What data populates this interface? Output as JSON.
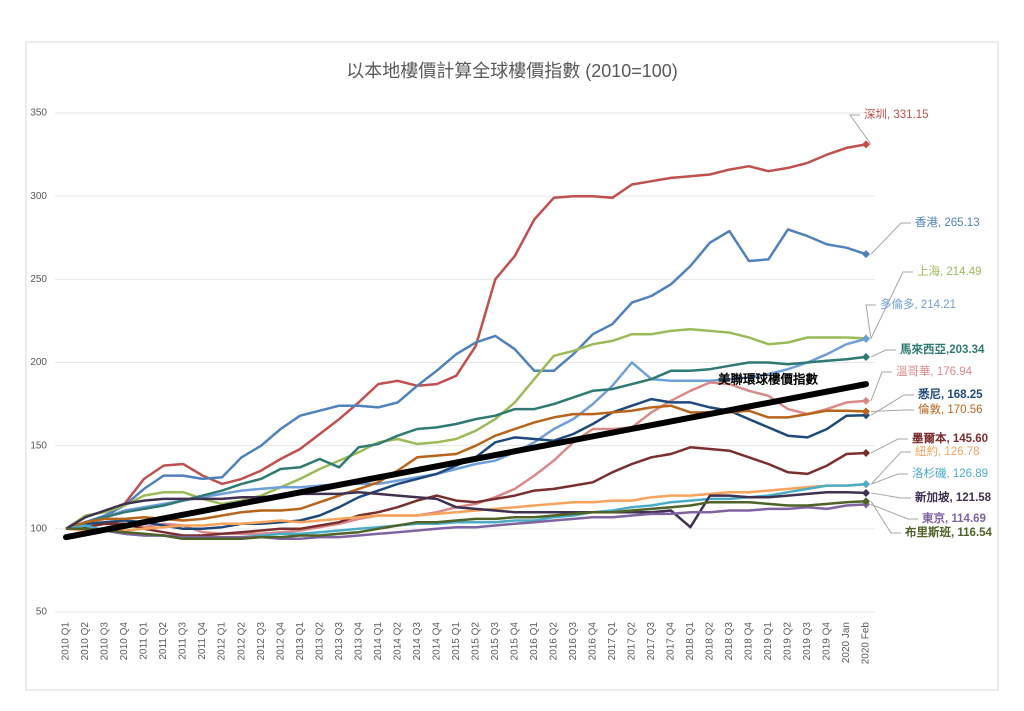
{
  "chart_data": {
    "type": "line",
    "title": "以本地樓價計算全球樓價指數 (2010=100)",
    "categories": [
      "2010 Q1",
      "2010 Q2",
      "2010 Q3",
      "2010 Q4",
      "2011 Q1",
      "2011 Q2",
      "2011 Q3",
      "2011 Q4",
      "2012 Q1",
      "2012 Q2",
      "2012 Q3",
      "2012 Q4",
      "2013 Q1",
      "2013 Q2",
      "2013 Q3",
      "2013 Q4",
      "2014 Q1",
      "2014 Q2",
      "2014 Q3",
      "2014 Q4",
      "2015 Q1",
      "2015 Q2",
      "2015 Q3",
      "2015 Q4",
      "2016 Q1",
      "2016 Q2",
      "2016 Q3",
      "2016 Q4",
      "2017 Q1",
      "2017 Q2",
      "2017 Q3",
      "2017 Q4",
      "2018 Q1",
      "2018 Q2",
      "2018 Q3",
      "2018 Q4",
      "2019 Q1",
      "2019 Q2",
      "2019 Q3",
      "2019 Q4",
      "2020 Jan",
      "2020 Feb"
    ],
    "ylim": [
      50,
      350
    ],
    "yticks": [
      50,
      100,
      150,
      200,
      250,
      300,
      350
    ],
    "grid": true,
    "series": [
      {
        "name": "深圳, 331.15",
        "color": "#c0504d",
        "values": [
          100,
          103,
          107,
          115,
          130,
          138,
          139,
          132,
          127,
          130,
          135,
          142,
          148,
          157,
          166,
          176,
          187,
          189,
          186,
          187,
          192,
          210,
          250,
          264,
          286,
          299,
          300,
          300,
          299,
          307,
          309,
          311,
          312,
          313,
          316,
          318,
          315,
          317,
          320,
          325,
          329,
          331.15
        ]
      },
      {
        "name": "香港, 265.13",
        "color": "#4f81bd",
        "values": [
          100,
          104,
          108,
          114,
          124,
          132,
          132,
          130,
          131,
          143,
          150,
          160,
          168,
          171,
          174,
          174,
          173,
          176,
          186,
          195,
          205,
          212,
          216,
          208,
          195,
          195,
          205,
          217,
          223,
          236,
          240,
          247,
          258,
          272,
          279,
          261,
          262,
          280,
          276,
          271,
          269,
          265.13
        ]
      },
      {
        "name": "上海, 214.49",
        "color": "#9bbb59",
        "values": [
          100,
          108,
          110,
          114,
          120,
          122,
          122,
          118,
          115,
          117,
          120,
          125,
          130,
          136,
          141,
          146,
          152,
          154,
          151,
          152,
          154,
          159,
          166,
          176,
          190,
          204,
          207,
          211,
          213,
          217,
          217,
          219,
          220,
          219,
          218,
          215,
          211,
          212,
          215,
          215,
          215,
          214.49
        ]
      },
      {
        "name": "多倫多, 214.21",
        "color": "#6f9fd8",
        "values": [
          100,
          104,
          107,
          111,
          113,
          115,
          117,
          119,
          121,
          123,
          124,
          125,
          125,
          126,
          127,
          127,
          127,
          129,
          131,
          133,
          136,
          139,
          141,
          146,
          152,
          160,
          166,
          175,
          186,
          200,
          190,
          189,
          189,
          189,
          190,
          191,
          193,
          196,
          200,
          205,
          211,
          214.21
        ]
      },
      {
        "name": "馬來西亞,203.34",
        "color": "#2e7a72",
        "values": [
          100,
          104,
          107,
          110,
          112,
          114,
          117,
          120,
          123,
          127,
          130,
          136,
          137,
          142,
          137,
          149,
          151,
          156,
          160,
          161,
          163,
          166,
          168,
          172,
          172,
          175,
          179,
          183,
          184,
          187,
          190,
          195,
          195,
          196,
          198,
          200,
          200,
          199,
          200,
          201,
          202,
          203.34
        ]
      },
      {
        "name": "溫哥華, 176.94",
        "color": "#d98a88",
        "values": [
          100,
          103,
          103,
          102,
          101,
          103,
          102,
          98,
          97,
          97,
          97,
          98,
          99,
          101,
          103,
          106,
          108,
          108,
          108,
          110,
          113,
          115,
          119,
          124,
          132,
          141,
          152,
          160,
          160,
          161,
          170,
          177,
          183,
          188,
          187,
          183,
          180,
          172,
          169,
          172,
          176,
          176.94
        ]
      },
      {
        "name": "悉尼, 168.25",
        "color": "#1f497d",
        "values": [
          100,
          103,
          104,
          105,
          104,
          102,
          100,
          100,
          101,
          103,
          103,
          104,
          105,
          108,
          113,
          119,
          123,
          127,
          130,
          133,
          138,
          143,
          152,
          155,
          154,
          153,
          157,
          163,
          170,
          174,
          178,
          176,
          176,
          173,
          171,
          166,
          161,
          156,
          155,
          160,
          168,
          168.25
        ]
      },
      {
        "name": "倫敦, 170.56",
        "color": "#b8651b",
        "values": [
          100,
          104,
          106,
          106,
          107,
          106,
          105,
          106,
          108,
          110,
          111,
          111,
          112,
          116,
          120,
          124,
          128,
          135,
          143,
          144,
          145,
          150,
          156,
          160,
          164,
          167,
          169,
          169,
          170,
          171,
          173,
          174,
          170,
          170,
          170,
          171,
          167,
          167,
          169,
          171,
          171,
          170.56
        ]
      },
      {
        "name": "墨爾本, 145.60",
        "color": "#7b2e2e",
        "values": [
          100,
          101,
          103,
          103,
          100,
          98,
          96,
          96,
          97,
          98,
          99,
          100,
          100,
          102,
          104,
          108,
          110,
          113,
          117,
          120,
          117,
          116,
          118,
          120,
          123,
          124,
          126,
          128,
          134,
          139,
          143,
          145,
          149,
          148,
          147,
          143,
          139,
          134,
          133,
          138,
          145,
          145.6
        ]
      },
      {
        "name": "紐約, 126.78",
        "color": "#f7a35c",
        "values": [
          100,
          99,
          99,
          99,
          100,
          101,
          102,
          102,
          103,
          103,
          104,
          105,
          104,
          105,
          106,
          107,
          108,
          108,
          108,
          109,
          110,
          111,
          112,
          113,
          114,
          115,
          116,
          116,
          117,
          117,
          119,
          120,
          120,
          121,
          122,
          122,
          123,
          124,
          125,
          126,
          126,
          126.78
        ]
      },
      {
        "name": "洛杉磯, 126.89",
        "color": "#4bacc6",
        "values": [
          100,
          102,
          99,
          97,
          96,
          96,
          94,
          94,
          94,
          95,
          96,
          97,
          97,
          98,
          99,
          100,
          101,
          102,
          103,
          103,
          104,
          104,
          104,
          105,
          105,
          107,
          108,
          110,
          111,
          113,
          114,
          116,
          117,
          118,
          118,
          119,
          120,
          122,
          124,
          126,
          126,
          126.89
        ]
      },
      {
        "name": "新加坡, 121.58",
        "color": "#403151",
        "values": [
          100,
          107,
          111,
          115,
          117,
          118,
          118,
          118,
          118,
          119,
          119,
          120,
          121,
          121,
          121,
          122,
          121,
          120,
          119,
          118,
          113,
          112,
          111,
          110,
          110,
          110,
          110,
          110,
          110,
          110,
          110,
          111,
          101,
          120,
          120,
          119,
          119,
          120,
          121,
          122,
          122,
          121.58
        ]
      },
      {
        "name": "東京, 114.69",
        "color": "#8064a2",
        "values": [
          100,
          100,
          99,
          97,
          96,
          96,
          95,
          95,
          95,
          95,
          95,
          94,
          94,
          95,
          95,
          96,
          97,
          98,
          99,
          100,
          101,
          101,
          102,
          103,
          104,
          105,
          106,
          107,
          107,
          108,
          109,
          109,
          110,
          110,
          111,
          111,
          112,
          112,
          113,
          112,
          114,
          114.69
        ]
      },
      {
        "name": "布里斯班, 116.54",
        "color": "#4f6228",
        "values": [
          100,
          100,
          99,
          98,
          97,
          96,
          94,
          94,
          94,
          94,
          95,
          95,
          96,
          96,
          97,
          98,
          100,
          102,
          104,
          104,
          105,
          106,
          106,
          107,
          107,
          108,
          109,
          110,
          110,
          111,
          112,
          113,
          114,
          116,
          116,
          116,
          115,
          114,
          114,
          115,
          116,
          116.54
        ]
      }
    ],
    "trend": {
      "name": "美聯環球樓價指數",
      "color": "#000000",
      "start": 95,
      "end": 187
    }
  }
}
